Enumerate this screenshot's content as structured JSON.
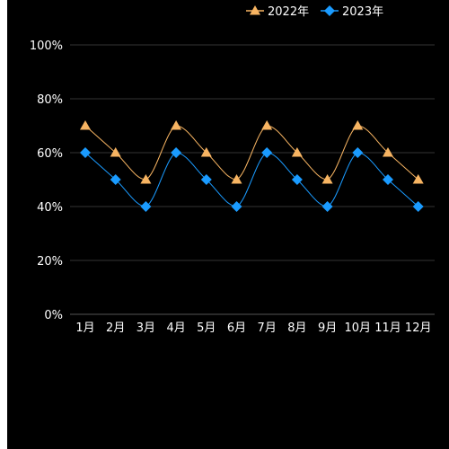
{
  "chart_data": {
    "type": "line",
    "categories": [
      "1月",
      "2月",
      "3月",
      "4月",
      "5月",
      "6月",
      "7月",
      "8月",
      "9月",
      "10月",
      "11月",
      "12月"
    ],
    "series": [
      {
        "name": "2022年",
        "values": [
          70,
          60,
          50,
          70,
          60,
          50,
          70,
          60,
          50,
          70,
          60,
          50
        ],
        "color": "#f7b462",
        "marker": "triangle"
      },
      {
        "name": "2023年",
        "values": [
          60,
          50,
          40,
          60,
          50,
          40,
          60,
          50,
          40,
          60,
          50,
          40
        ],
        "color": "#1a9bff",
        "marker": "diamond"
      }
    ],
    "y_ticks": [
      "0%",
      "20%",
      "40%",
      "60%",
      "80%",
      "100%"
    ],
    "ylim": [
      0,
      100
    ],
    "grid": true,
    "legend": "top-right",
    "background": "#000000",
    "grid_color": "#333333"
  }
}
